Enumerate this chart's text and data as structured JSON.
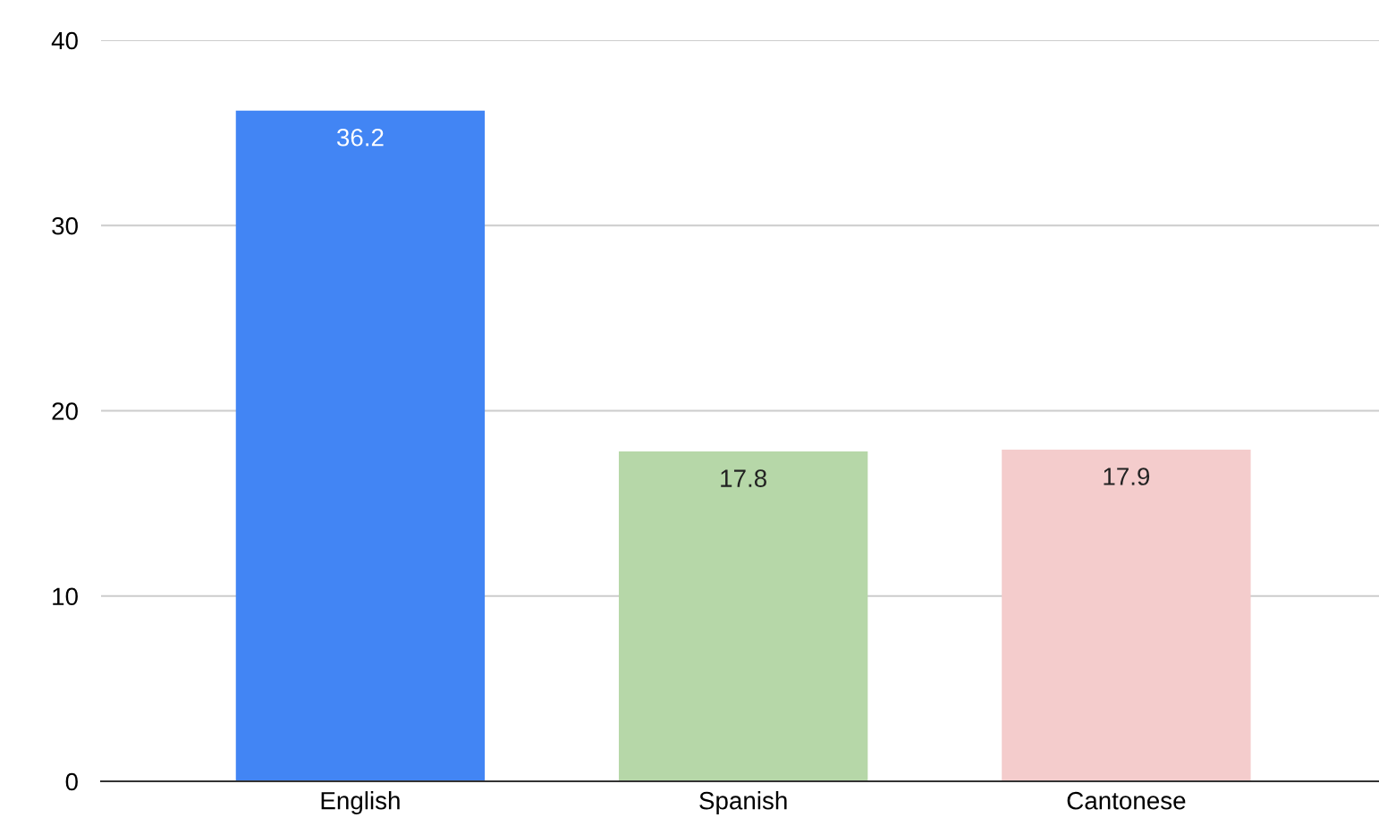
{
  "chart_data": {
    "type": "bar",
    "categories": [
      "English",
      "Spanish",
      "Cantonese"
    ],
    "values": [
      36.2,
      17.8,
      17.9
    ],
    "colors": [
      "#4285f4",
      "#b6d7a8",
      "#f4cccc"
    ],
    "ylim": [
      0,
      40
    ],
    "yticks": [
      0,
      10,
      20,
      30,
      40
    ],
    "grid": "y",
    "data_labels": true,
    "legend": false
  }
}
